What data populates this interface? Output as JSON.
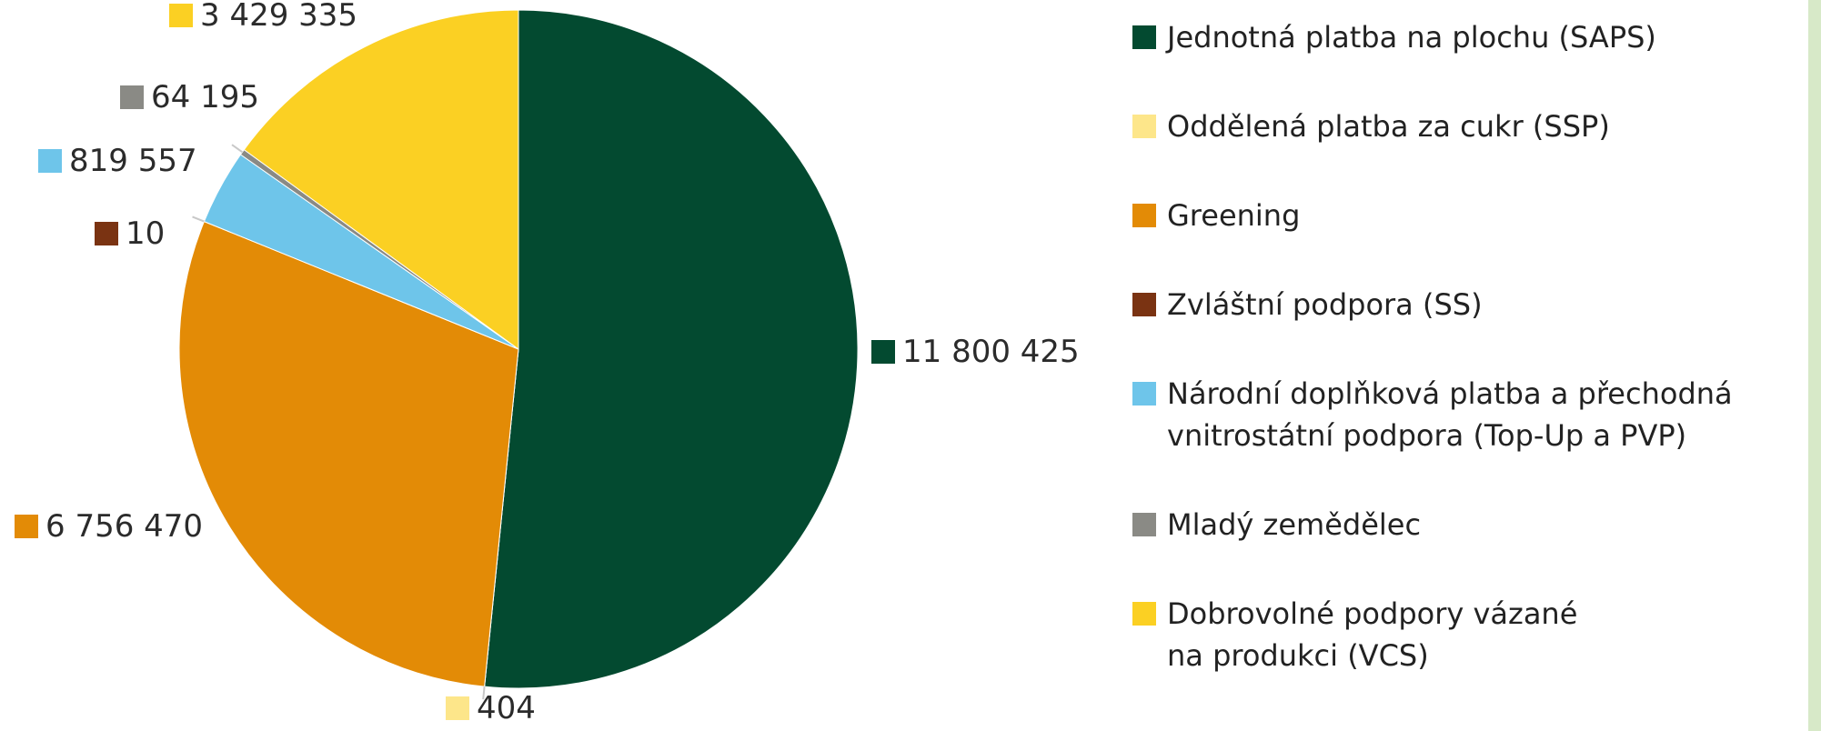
{
  "chart_data": {
    "type": "pie",
    "slices": [
      {
        "name": "Jednotná platba na plochu (SAPS)",
        "value": 11800425,
        "label": "11 800 425",
        "color": "#034a30"
      },
      {
        "name": "Oddělená platba za cukr (SSP)",
        "value": 404,
        "label": "404",
        "color": "#fde68a"
      },
      {
        "name": "Greening",
        "value": 6756470,
        "label": "6 756 470",
        "color": "#e38b06"
      },
      {
        "name": "Zvláštní podpora (SS)",
        "value": 10,
        "label": "10",
        "color": "#7a3312"
      },
      {
        "name": "Národní doplňková platba a přechodná\nvnitrostátní podpora (Top-Up a PVP)",
        "value": 819557,
        "label": "819 557",
        "color": "#6ec5ea"
      },
      {
        "name": "Mladý zemědělec",
        "value": 64195,
        "label": "64 195",
        "color": "#8a8a85"
      },
      {
        "name": "Dobrovolné podpory vázané\nna produkci (VCS)",
        "value": 3429335,
        "label": "3 429 335",
        "color": "#fbd023"
      }
    ],
    "legend_position": "right"
  }
}
